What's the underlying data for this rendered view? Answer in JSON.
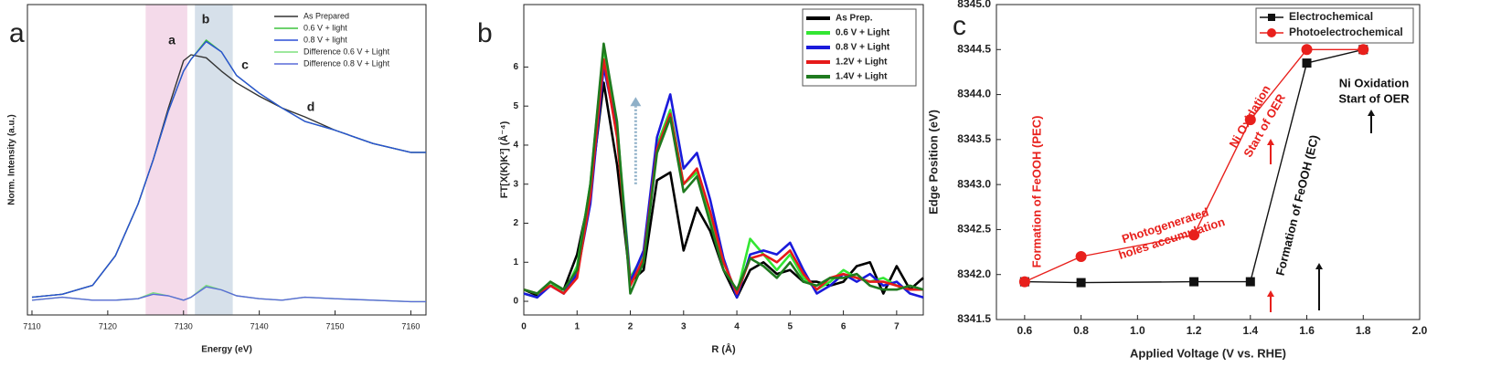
{
  "chart_data": [
    {
      "type": "line",
      "panel_label": "a",
      "x_label": "Energy (eV)",
      "y_label": "Norm. Intensity (a.u.)",
      "annotations": [
        "a",
        "b",
        "c",
        "d"
      ],
      "shaded_regions": [
        {
          "range": [
            7125,
            7130.5
          ],
          "color": "#f2d4e6"
        },
        {
          "range": [
            7131.5,
            7136.5
          ],
          "color": "#cfdbe6"
        }
      ],
      "xlim": [
        7109.4,
        7162
      ],
      "xticks": [
        7110,
        7120,
        7130,
        7140,
        7150,
        7160
      ],
      "ylim": [
        -0.1,
        2.0
      ],
      "x": [
        7110,
        7114,
        7118,
        7121,
        7124,
        7126,
        7128,
        7130,
        7131,
        7133,
        7135,
        7137,
        7140,
        7143,
        7146,
        7150,
        7155,
        7160,
        7162
      ],
      "series": [
        {
          "name": "As Prepared",
          "color": "#333333",
          "values": [
            0.02,
            0.04,
            0.1,
            0.3,
            0.65,
            0.95,
            1.3,
            1.62,
            1.66,
            1.64,
            1.55,
            1.47,
            1.38,
            1.3,
            1.24,
            1.15,
            1.06,
            1.0,
            1.0
          ]
        },
        {
          "name": "0.6 V + light",
          "color": "#3ec43e",
          "values": [
            0.02,
            0.04,
            0.1,
            0.3,
            0.65,
            0.95,
            1.28,
            1.55,
            1.63,
            1.76,
            1.68,
            1.52,
            1.4,
            1.3,
            1.21,
            1.15,
            1.06,
            1.0,
            1.0
          ]
        },
        {
          "name": "0.8 V + light",
          "color": "#2b4fd6",
          "values": [
            0.02,
            0.04,
            0.1,
            0.3,
            0.65,
            0.95,
            1.28,
            1.55,
            1.63,
            1.75,
            1.68,
            1.52,
            1.4,
            1.3,
            1.21,
            1.15,
            1.06,
            1.0,
            1.0
          ]
        },
        {
          "name": "Difference 0.6 V + Light",
          "color": "#7fe07f",
          "values": [
            0.0,
            0.02,
            0.0,
            0.0,
            0.01,
            0.05,
            0.03,
            0.0,
            0.02,
            0.1,
            0.07,
            0.03,
            0.01,
            0.0,
            0.02,
            0.01,
            0.0,
            -0.01,
            -0.01
          ]
        },
        {
          "name": "Difference 0.8 V + Light",
          "color": "#5a6bd8",
          "values": [
            0.0,
            0.02,
            0.0,
            0.0,
            0.01,
            0.04,
            0.03,
            0.0,
            0.02,
            0.09,
            0.07,
            0.03,
            0.01,
            0.0,
            0.02,
            0.01,
            0.0,
            -0.01,
            -0.01
          ]
        }
      ]
    },
    {
      "type": "line",
      "panel_label": "b",
      "x_label": "R (Å)",
      "y_label": "FT[X(K)K³] (Å⁻⁴)",
      "xlim": [
        0,
        7.5
      ],
      "xticks": [
        0,
        1,
        2,
        3,
        4,
        5,
        6,
        7
      ],
      "ylim": [
        -0.35,
        7.6
      ],
      "yticks": [
        0,
        1,
        2,
        3,
        4,
        5,
        6
      ],
      "x": [
        0,
        0.25,
        0.5,
        0.75,
        1,
        1.25,
        1.5,
        1.75,
        2,
        2.25,
        2.5,
        2.75,
        3,
        3.25,
        3.5,
        3.75,
        4,
        4.25,
        4.5,
        4.75,
        5,
        5.25,
        5.5,
        5.75,
        6,
        6.25,
        6.5,
        6.75,
        7,
        7.25,
        7.5
      ],
      "series": [
        {
          "name": "As Prep.",
          "color": "#000000",
          "values": [
            0.3,
            0.15,
            0.4,
            0.3,
            1.2,
            2.8,
            5.6,
            3.5,
            0.5,
            0.8,
            3.1,
            3.3,
            1.3,
            2.4,
            1.8,
            0.8,
            0.1,
            0.8,
            1.0,
            0.7,
            0.8,
            0.5,
            0.5,
            0.4,
            0.5,
            0.9,
            1.0,
            0.2,
            0.9,
            0.3,
            0.6
          ]
        },
        {
          "name": "0.6 V + Light",
          "color": "#33e633",
          "values": [
            0.2,
            0.1,
            0.5,
            0.2,
            0.9,
            3.0,
            6.5,
            4.5,
            0.6,
            1.2,
            4.0,
            4.9,
            3.0,
            3.3,
            2.2,
            1.0,
            0.2,
            1.6,
            1.2,
            0.8,
            1.2,
            0.6,
            0.3,
            0.5,
            0.8,
            0.6,
            0.5,
            0.6,
            0.4,
            0.3,
            0.3
          ]
        },
        {
          "name": "0.8 V + Light",
          "color": "#1a1adb",
          "values": [
            0.2,
            0.1,
            0.4,
            0.2,
            0.7,
            2.5,
            6.0,
            4.4,
            0.5,
            1.3,
            4.2,
            5.3,
            3.4,
            3.8,
            2.6,
            1.1,
            0.1,
            1.2,
            1.3,
            1.2,
            1.5,
            0.8,
            0.2,
            0.4,
            0.7,
            0.5,
            0.7,
            0.4,
            0.5,
            0.2,
            0.1
          ]
        },
        {
          "name": "1.2V + Light",
          "color": "#e61a1a",
          "values": [
            0.3,
            0.2,
            0.4,
            0.2,
            0.6,
            2.7,
            6.2,
            4.2,
            0.4,
            1.1,
            3.9,
            4.8,
            3.0,
            3.4,
            2.3,
            1.0,
            0.2,
            1.1,
            1.2,
            1.0,
            1.3,
            0.7,
            0.3,
            0.6,
            0.7,
            0.6,
            0.5,
            0.5,
            0.4,
            0.3,
            0.3
          ]
        },
        {
          "name": "1.4V + Light",
          "color": "#1f7a1f",
          "values": [
            0.3,
            0.2,
            0.5,
            0.3,
            0.8,
            3.0,
            6.6,
            4.6,
            0.2,
            1.0,
            3.8,
            4.7,
            2.8,
            3.2,
            2.0,
            0.8,
            0.3,
            1.1,
            0.9,
            0.6,
            1.0,
            0.5,
            0.4,
            0.6,
            0.6,
            0.7,
            0.4,
            0.3,
            0.3,
            0.4,
            0.3
          ]
        }
      ]
    },
    {
      "type": "line",
      "markers": true,
      "panel_label": "c",
      "x_label": "Applied Voltage (V vs. RHE)",
      "y_label": "Edge Position (eV)",
      "annotations": [
        "Formation of FeOOH (PEC)",
        "Photogenerated",
        "holes accumulation",
        "Ni Oxidation",
        "Start of OER",
        "Ni Oxidation",
        "Start of OER",
        "Formation of FeOOH (EC)"
      ],
      "xlim": [
        0.5,
        2.0
      ],
      "xticks": [
        0.6,
        0.8,
        {
          "value": 1.0,
          "label": "1.0"
        },
        1.2,
        1.4,
        1.6,
        1.8,
        {
          "value": 2.0,
          "label": "2.0"
        }
      ],
      "ylim": [
        8341.5,
        8345.0
      ],
      "yticks": [
        8341.5,
        {
          "value": 8342,
          "label": "8342.0"
        },
        8342.5,
        {
          "value": 8343,
          "label": "8343.0"
        },
        8343.5,
        {
          "value": 8344,
          "label": "8344.0"
        },
        8344.5,
        {
          "value": 8345,
          "label": "8345.0"
        }
      ],
      "x": [
        0.6,
        0.8,
        1.2,
        1.4,
        1.6,
        1.8
      ],
      "series": [
        {
          "name": "Electrochemical",
          "color": "#111111",
          "marker": "square",
          "values": [
            8341.92,
            8341.91,
            8341.92,
            8341.92,
            8344.35,
            8344.5
          ]
        },
        {
          "name": "Photoelectrochemical",
          "color": "#e8201c",
          "marker": "circle",
          "values": [
            8341.92,
            8342.2,
            8342.44,
            8343.72,
            8344.5,
            8344.5
          ]
        }
      ]
    }
  ]
}
